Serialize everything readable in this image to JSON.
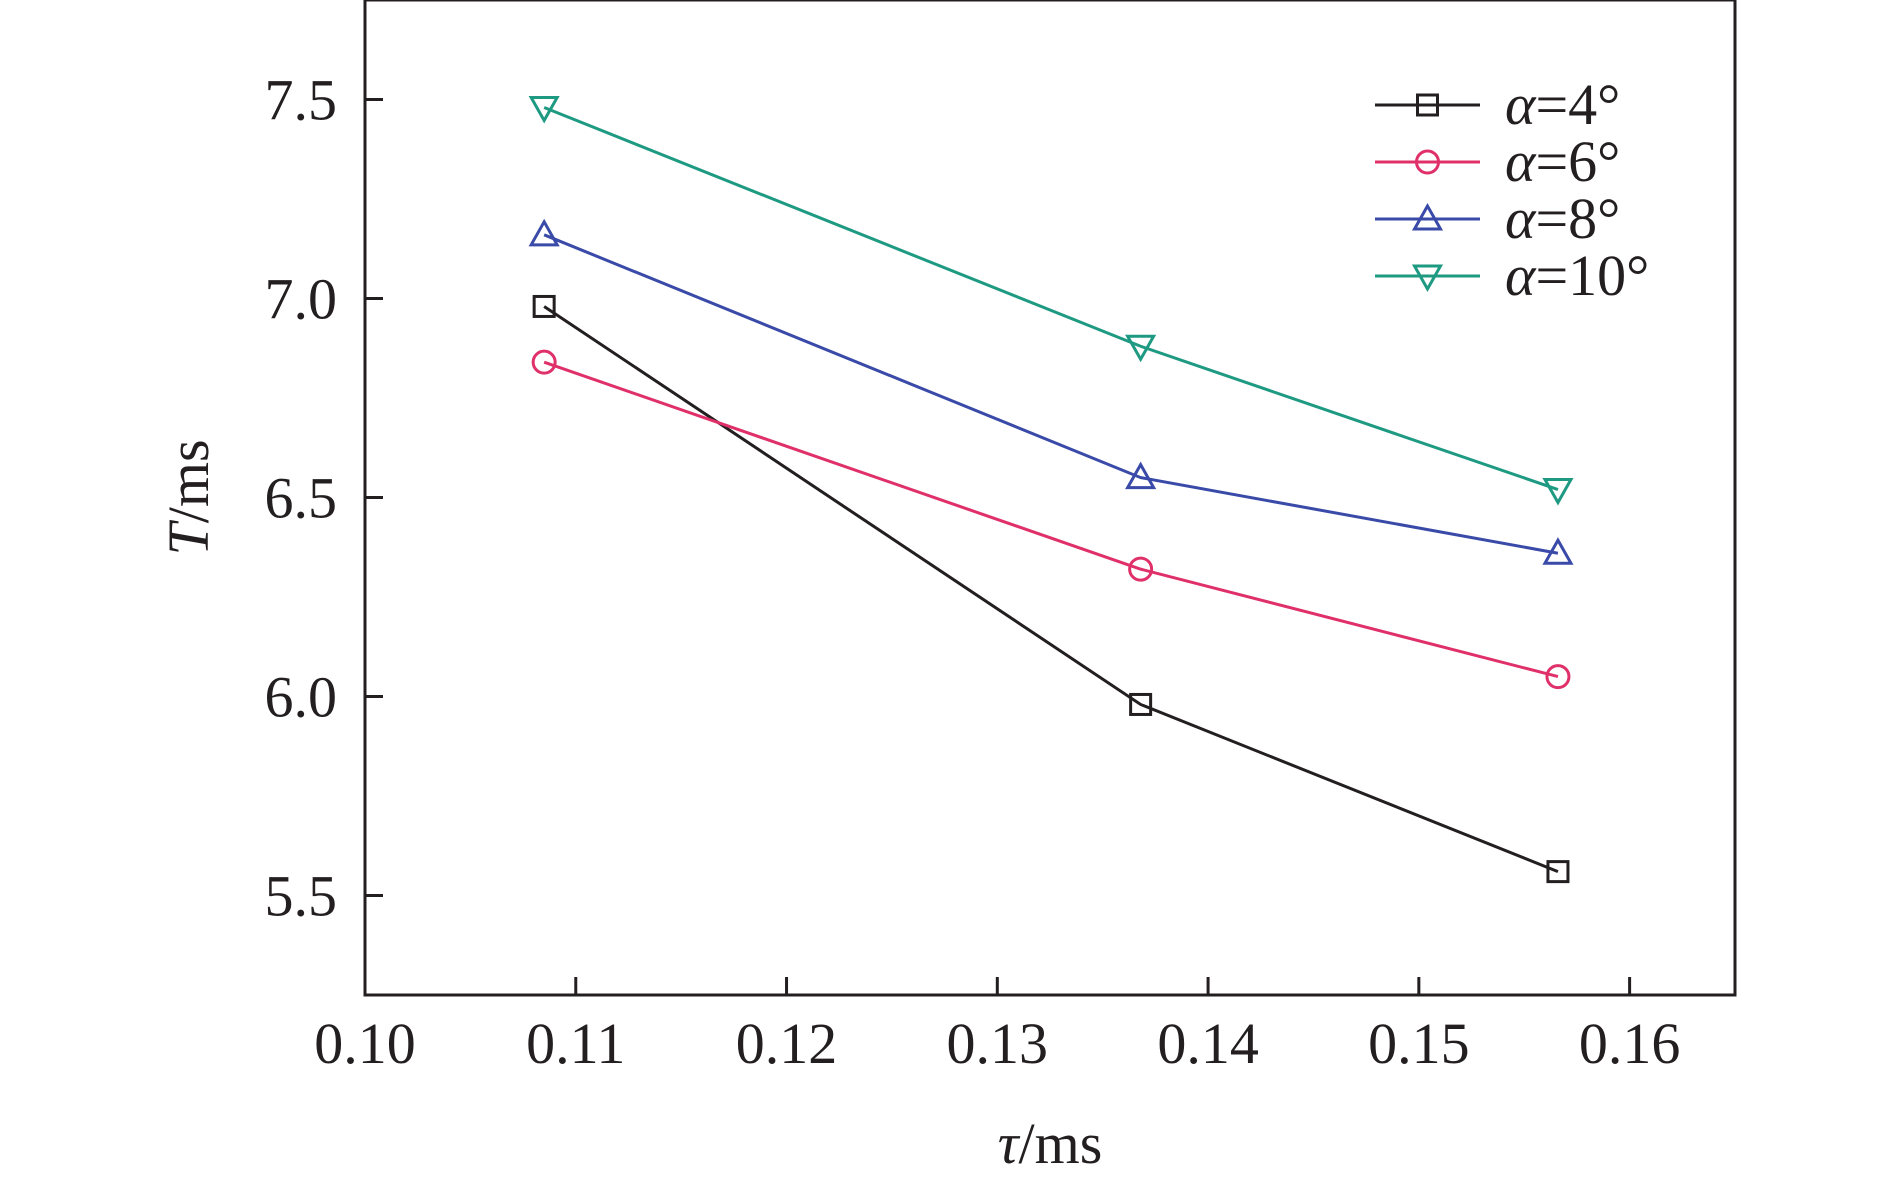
{
  "chart_data": {
    "type": "line",
    "title": "",
    "xlabel": "τ/ms",
    "xlabel_italic": "τ",
    "xlabel_rest": "/ms",
    "ylabel": "T/ms",
    "ylabel_italic": "T",
    "ylabel_rest": "/ms",
    "xlim": [
      0.1,
      0.165
    ],
    "ylim": [
      5.25,
      7.75
    ],
    "xticks": [
      0.1,
      0.11,
      0.12,
      0.13,
      0.14,
      0.15,
      0.16
    ],
    "xtick_labels": [
      "0.10",
      "0.11",
      "0.12",
      "0.13",
      "0.14",
      "0.15",
      "0.16"
    ],
    "yticks": [
      5.5,
      6.0,
      6.5,
      7.0,
      7.5
    ],
    "ytick_labels": [
      "5.5",
      "6.0",
      "6.5",
      "7.0",
      "7.5"
    ],
    "grid": false,
    "legend_position": "top-right",
    "series": [
      {
        "name": "α=4°",
        "name_italic": "α",
        "name_rest": "=4°",
        "marker": "square",
        "color": "#231f20",
        "x": [
          0.1085,
          0.1368,
          0.1566
        ],
        "y": [
          6.98,
          5.98,
          5.56
        ]
      },
      {
        "name": "α=6°",
        "name_italic": "α",
        "name_rest": "=6°",
        "marker": "circle",
        "color": "#e0306a",
        "x": [
          0.1085,
          0.1368,
          0.1566
        ],
        "y": [
          6.84,
          6.32,
          6.05
        ]
      },
      {
        "name": "α=8°",
        "name_italic": "α",
        "name_rest": "=8°",
        "marker": "triangle-up",
        "color": "#3a4aa8",
        "x": [
          0.1085,
          0.1368,
          0.1566
        ],
        "y": [
          7.16,
          6.55,
          6.36
        ]
      },
      {
        "name": "α=10°",
        "name_italic": "α",
        "name_rest": "=10°",
        "marker": "triangle-down",
        "color": "#1f9a82",
        "x": [
          0.1085,
          0.1368,
          0.1566
        ],
        "y": [
          7.48,
          6.88,
          6.52
        ]
      }
    ]
  }
}
